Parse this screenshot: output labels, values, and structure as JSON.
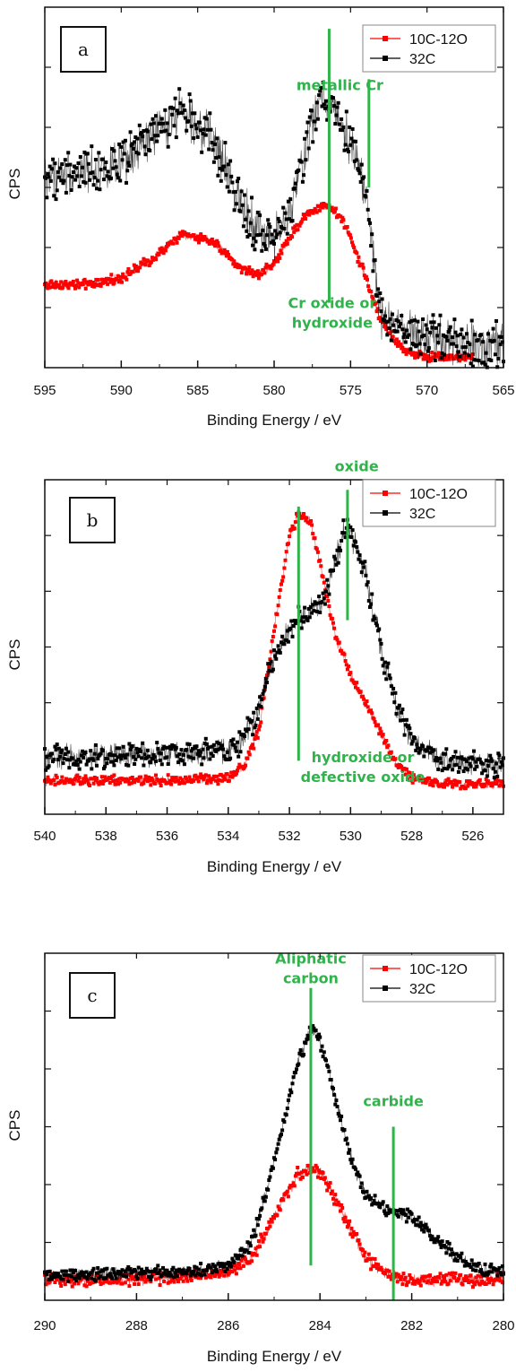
{
  "chart_data": [
    {
      "type": "scatter",
      "panel_label": "a",
      "xlabel": "Binding Energy / eV",
      "ylabel": "CPS",
      "xlim": [
        595,
        565
      ],
      "x_ticks": [
        595,
        590,
        585,
        580,
        575,
        570,
        565
      ],
      "x_tick_labels": [
        "595",
        "590",
        "585",
        "580",
        "575",
        "570",
        "565"
      ],
      "ylim": [
        0,
        1
      ],
      "y_tick_labels": [],
      "grid": false,
      "legend_position": "top-right",
      "series": [
        {
          "name": "10C-12O",
          "color": "#ff0000",
          "marker": "square",
          "noise": 0.01,
          "x": [
            595,
            592,
            590,
            588,
            586,
            584,
            582,
            581,
            580,
            579,
            578,
            577,
            576.5,
            575.5,
            575,
            574,
            573,
            572,
            571,
            570,
            569,
            568,
            567
          ],
          "y": [
            0.23,
            0.23,
            0.25,
            0.3,
            0.37,
            0.35,
            0.27,
            0.26,
            0.29,
            0.36,
            0.42,
            0.45,
            0.45,
            0.41,
            0.36,
            0.25,
            0.13,
            0.07,
            0.04,
            0.03,
            0.03,
            0.03,
            0.03
          ]
        },
        {
          "name": "32C",
          "color": "#000000",
          "marker": "square",
          "noise": 0.05,
          "x": [
            595,
            592,
            590,
            588,
            586,
            584,
            583,
            582,
            581,
            580,
            579,
            578,
            577,
            576,
            575,
            574.5,
            574,
            573.5,
            573,
            572,
            571,
            570,
            569,
            568,
            567,
            566,
            565
          ],
          "y": [
            0.53,
            0.55,
            0.56,
            0.64,
            0.72,
            0.63,
            0.53,
            0.45,
            0.38,
            0.36,
            0.42,
            0.6,
            0.75,
            0.72,
            0.62,
            0.58,
            0.48,
            0.3,
            0.14,
            0.11,
            0.09,
            0.08,
            0.07,
            0.07,
            0.06,
            0.06,
            0.06
          ]
        }
      ],
      "markers": [
        {
          "x": 576.4,
          "y_from": 0.18,
          "y_to": 0.94
        },
        {
          "x": 573.8,
          "y_from": 0.5,
          "y_to": 0.8
        }
      ],
      "annotations": [
        {
          "x": 575.7,
          "y": 0.77,
          "lines": [
            "metallic Cr"
          ]
        },
        {
          "x": 576.2,
          "y": 0.165,
          "lines": [
            "Cr oxide or",
            "hydroxide"
          ]
        }
      ]
    },
    {
      "type": "scatter",
      "panel_label": "b",
      "xlabel": "Binding Energy / eV",
      "ylabel": "CPS",
      "xlim": [
        540,
        525
      ],
      "x_ticks": [
        540,
        538,
        536,
        534,
        532,
        530,
        528,
        526
      ],
      "x_tick_labels": [
        "540",
        "538",
        "536",
        "534",
        "532",
        "530",
        "528",
        "526"
      ],
      "ylim": [
        0,
        1
      ],
      "y_tick_labels": [],
      "grid": false,
      "legend_position": "top-right",
      "series": [
        {
          "name": "10C-12O",
          "color": "#ff0000",
          "marker": "square",
          "noise": 0.012,
          "x": [
            540,
            536,
            534,
            533.5,
            533,
            532.5,
            532,
            531.7,
            531.3,
            531,
            530.5,
            530,
            529.5,
            529,
            528.5,
            528,
            527,
            526,
            525
          ],
          "y": [
            0.1,
            0.1,
            0.11,
            0.14,
            0.25,
            0.55,
            0.83,
            0.9,
            0.87,
            0.75,
            0.53,
            0.42,
            0.33,
            0.24,
            0.15,
            0.11,
            0.09,
            0.09,
            0.09
          ]
        },
        {
          "name": "32C",
          "color": "#000000",
          "marker": "square",
          "noise": 0.03,
          "x": [
            540,
            536,
            534,
            533.5,
            533,
            532.5,
            532,
            531.5,
            531,
            530.5,
            530.2,
            530,
            529.5,
            529,
            528.5,
            528,
            527,
            526,
            525
          ],
          "y": [
            0.17,
            0.18,
            0.19,
            0.22,
            0.32,
            0.47,
            0.55,
            0.6,
            0.62,
            0.75,
            0.85,
            0.84,
            0.72,
            0.5,
            0.32,
            0.22,
            0.16,
            0.15,
            0.14
          ]
        }
      ],
      "markers": [
        {
          "x": 531.7,
          "y_from": 0.16,
          "y_to": 0.92
        },
        {
          "x": 530.1,
          "y_from": 0.58,
          "y_to": 0.97
        }
      ],
      "annotations": [
        {
          "x": 529.8,
          "y": 1.025,
          "lines": [
            "oxide"
          ]
        },
        {
          "x": 529.6,
          "y": 0.155,
          "lines": [
            "hydroxide or",
            "defective oxide"
          ]
        }
      ]
    },
    {
      "type": "scatter",
      "panel_label": "c",
      "xlabel": "Binding Energy / eV",
      "ylabel": "CPS",
      "xlim": [
        290,
        280
      ],
      "x_ticks": [
        290,
        288,
        286,
        284,
        282,
        280
      ],
      "x_tick_labels": [
        "290",
        "288",
        "286",
        "284",
        "282",
        "280"
      ],
      "ylim": [
        0,
        1
      ],
      "y_tick_labels": [],
      "grid": false,
      "legend_position": "top-right",
      "series": [
        {
          "name": "10C-12O",
          "color": "#ff0000",
          "marker": "square",
          "noise": 0.015,
          "x": [
            290,
            288,
            287,
            286,
            285.5,
            285,
            284.5,
            284.2,
            284,
            283.5,
            283,
            282.5,
            282,
            281,
            280
          ],
          "y": [
            0.06,
            0.06,
            0.07,
            0.08,
            0.12,
            0.24,
            0.36,
            0.38,
            0.37,
            0.25,
            0.12,
            0.07,
            0.06,
            0.06,
            0.06
          ]
        },
        {
          "name": "32C",
          "color": "#000000",
          "marker": "square",
          "noise": 0.015,
          "x": [
            290,
            288,
            287,
            286,
            285.5,
            285,
            284.5,
            284.2,
            284,
            283.7,
            283.3,
            283,
            282.5,
            282,
            281.5,
            281,
            280.5,
            280
          ],
          "y": [
            0.07,
            0.08,
            0.08,
            0.1,
            0.16,
            0.4,
            0.68,
            0.78,
            0.75,
            0.6,
            0.4,
            0.3,
            0.26,
            0.24,
            0.18,
            0.12,
            0.09,
            0.08
          ]
        }
      ],
      "markers": [
        {
          "x": 284.2,
          "y_from": 0.1,
          "y_to": 0.9
        },
        {
          "x": 282.4,
          "y_from": 0.0,
          "y_to": 0.5
        }
      ],
      "annotations": [
        {
          "x": 284.2,
          "y": 0.97,
          "lines": [
            "Aliphatic",
            "carbon"
          ]
        },
        {
          "x": 282.4,
          "y": 0.56,
          "lines": [
            "carbide"
          ]
        }
      ]
    }
  ],
  "colors": {
    "ann": "#2fb34a",
    "red": "#ff0000",
    "black": "#000000"
  }
}
